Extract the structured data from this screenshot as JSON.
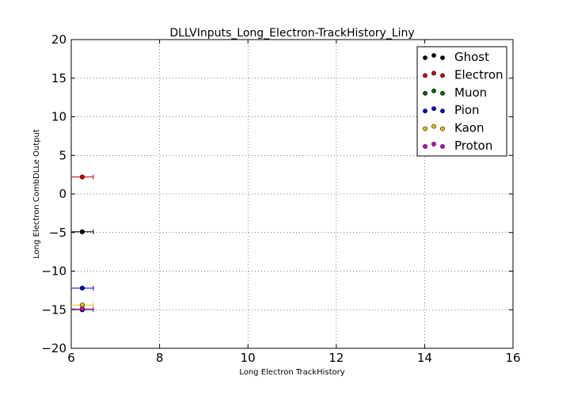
{
  "chart_data": {
    "type": "scatter",
    "title": "DLLVInputs_Long_Electron-TrackHistory_Liny",
    "xlabel": "Long Electron TrackHistory",
    "ylabel": "Long Electron CombDLLe Output",
    "xlim": [
      6,
      16
    ],
    "ylim": [
      -20,
      20
    ],
    "xticks": [
      "6",
      "8",
      "10",
      "12",
      "14",
      "16"
    ],
    "yticks": [
      "20",
      "15",
      "10",
      "5",
      "0",
      "−5",
      "−10",
      "−15",
      "−20"
    ],
    "grid": true,
    "legend_position": "top-right",
    "series": [
      {
        "name": "Ghost",
        "color": "#000000",
        "x": 6.25,
        "xerr": 0.25,
        "y": -4.9
      },
      {
        "name": "Electron",
        "color": "#cc0000",
        "x": 6.25,
        "xerr": 0.25,
        "y": 2.2
      },
      {
        "name": "Muon",
        "color": "#006600",
        "x": 6.25,
        "xerr": 0.25,
        "y": -15.0
      },
      {
        "name": "Pion",
        "color": "#0000cc",
        "x": 6.25,
        "xerr": 0.25,
        "y": -12.2
      },
      {
        "name": "Kaon",
        "color": "#e6c200",
        "x": 6.25,
        "xerr": 0.25,
        "y": -14.4
      },
      {
        "name": "Proton",
        "color": "#cc00cc",
        "x": 6.25,
        "xerr": 0.25,
        "y": -14.9
      }
    ]
  }
}
